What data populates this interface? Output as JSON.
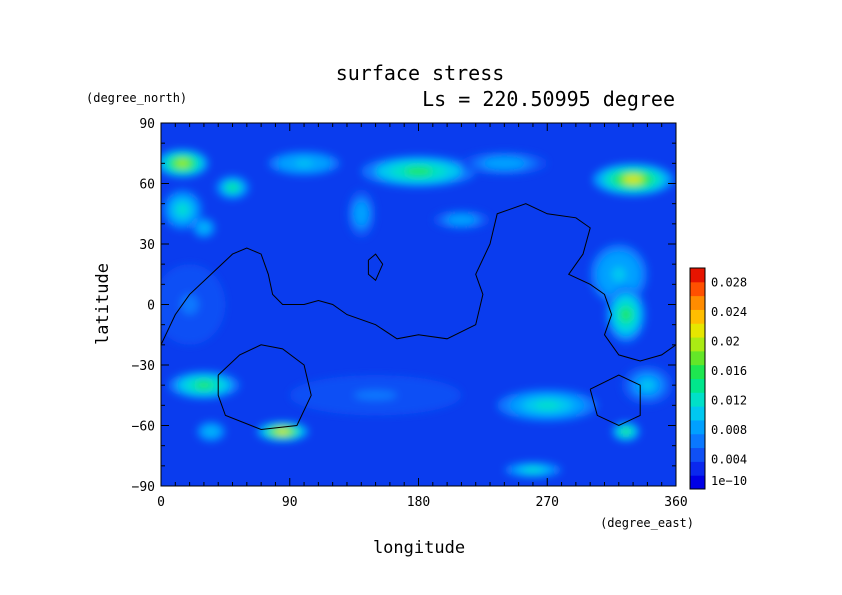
{
  "chart_data": {
    "type": "heatmap",
    "title": "surface stress",
    "subtitle": "Ls = 220.50995 degree",
    "xlabel": "longitude",
    "ylabel": "latitude",
    "x_units": "(degree_east)",
    "y_units": "(degree_north)",
    "xlim": [
      0,
      360
    ],
    "ylim": [
      -90,
      90
    ],
    "x_ticks": [
      "0",
      "90",
      "180",
      "270",
      "360"
    ],
    "y_ticks": [
      "90",
      "60",
      "30",
      "0",
      "−30",
      "−60",
      "−90"
    ],
    "x_tick_values": [
      0,
      90,
      180,
      270,
      360
    ],
    "y_tick_values": [
      90,
      60,
      30,
      0,
      -30,
      -60,
      -90
    ],
    "colorbar": {
      "min": 0,
      "max": 0.03,
      "ticks": [
        "1e−10",
        "0.004",
        "0.008",
        "0.012",
        "0.016",
        "0.02",
        "0.024",
        "0.028"
      ],
      "tick_values": [
        0,
        0.004,
        0.008,
        0.012,
        0.016,
        0.02,
        0.024,
        0.028
      ],
      "colors": [
        "#0000e6",
        "#0a28ee",
        "#0f50f5",
        "#0a78ff",
        "#00a0ff",
        "#00c8f0",
        "#00e0c8",
        "#00e68c",
        "#1ee650",
        "#64e628",
        "#aaeb14",
        "#e6e600",
        "#ffbe00",
        "#ff8c00",
        "#ff5000",
        "#e61400"
      ]
    },
    "hotspots": [
      {
        "lon": 15,
        "lat": 70,
        "rx": 18,
        "ry": 7,
        "value": 0.019
      },
      {
        "lon": 50,
        "lat": 58,
        "rx": 12,
        "ry": 6,
        "value": 0.014
      },
      {
        "lon": 15,
        "lat": 47,
        "rx": 14,
        "ry": 10,
        "value": 0.012
      },
      {
        "lon": 30,
        "lat": 38,
        "rx": 8,
        "ry": 5,
        "value": 0.011
      },
      {
        "lon": 100,
        "lat": 70,
        "rx": 25,
        "ry": 6,
        "value": 0.011
      },
      {
        "lon": 180,
        "lat": 66,
        "rx": 40,
        "ry": 8,
        "value": 0.015
      },
      {
        "lon": 240,
        "lat": 70,
        "rx": 30,
        "ry": 6,
        "value": 0.009
      },
      {
        "lon": 330,
        "lat": 62,
        "rx": 28,
        "ry": 8,
        "value": 0.021
      },
      {
        "lon": 320,
        "lat": 15,
        "rx": 20,
        "ry": 15,
        "value": 0.011
      },
      {
        "lon": 325,
        "lat": -5,
        "rx": 14,
        "ry": 14,
        "value": 0.015
      },
      {
        "lon": 30,
        "lat": -40,
        "rx": 25,
        "ry": 7,
        "value": 0.015
      },
      {
        "lon": 85,
        "lat": -63,
        "rx": 18,
        "ry": 5,
        "value": 0.022
      },
      {
        "lon": 35,
        "lat": -63,
        "rx": 10,
        "ry": 5,
        "value": 0.011
      },
      {
        "lon": 270,
        "lat": -50,
        "rx": 35,
        "ry": 8,
        "value": 0.012
      },
      {
        "lon": 325,
        "lat": -63,
        "rx": 10,
        "ry": 5,
        "value": 0.016
      },
      {
        "lon": 260,
        "lat": -82,
        "rx": 20,
        "ry": 4,
        "value": 0.012
      },
      {
        "lon": 140,
        "lat": 45,
        "rx": 10,
        "ry": 12,
        "value": 0.009
      },
      {
        "lon": 210,
        "lat": 42,
        "rx": 20,
        "ry": 5,
        "value": 0.009
      },
      {
        "lon": 340,
        "lat": -40,
        "rx": 18,
        "ry": 10,
        "value": 0.01
      },
      {
        "lon": 150,
        "lat": -45,
        "rx": 60,
        "ry": 10,
        "value": 0.006
      },
      {
        "lon": 20,
        "lat": 0,
        "rx": 25,
        "ry": 20,
        "value": 0.006
      }
    ],
    "contours": [
      {
        "name": "continent-outline",
        "points": [
          [
            0,
            -20
          ],
          [
            10,
            -5
          ],
          [
            20,
            5
          ],
          [
            35,
            15
          ],
          [
            50,
            25
          ],
          [
            60,
            28
          ],
          [
            70,
            25
          ],
          [
            75,
            15
          ],
          [
            78,
            5
          ],
          [
            85,
            0
          ],
          [
            100,
            0
          ],
          [
            110,
            2
          ],
          [
            120,
            0
          ],
          [
            130,
            -5
          ],
          [
            150,
            -10
          ],
          [
            165,
            -17
          ],
          [
            180,
            -15
          ],
          [
            200,
            -17
          ],
          [
            220,
            -10
          ],
          [
            225,
            5
          ],
          [
            220,
            15
          ],
          [
            230,
            30
          ],
          [
            235,
            45
          ],
          [
            255,
            50
          ],
          [
            270,
            45
          ],
          [
            290,
            43
          ],
          [
            300,
            38
          ],
          [
            295,
            25
          ],
          [
            285,
            15
          ],
          [
            300,
            10
          ],
          [
            310,
            5
          ],
          [
            315,
            -5
          ],
          [
            310,
            -15
          ],
          [
            320,
            -25
          ],
          [
            335,
            -28
          ],
          [
            350,
            -25
          ],
          [
            360,
            -20
          ]
        ]
      },
      {
        "name": "island-outline",
        "points": [
          [
            145,
            22
          ],
          [
            150,
            25
          ],
          [
            155,
            20
          ],
          [
            150,
            12
          ],
          [
            145,
            15
          ],
          [
            145,
            22
          ]
        ]
      },
      {
        "name": "southwest-basin-outline",
        "points": [
          [
            40,
            -35
          ],
          [
            55,
            -25
          ],
          [
            70,
            -20
          ],
          [
            85,
            -22
          ],
          [
            100,
            -30
          ],
          [
            105,
            -45
          ],
          [
            95,
            -60
          ],
          [
            70,
            -62
          ],
          [
            45,
            -55
          ],
          [
            40,
            -45
          ],
          [
            40,
            -35
          ]
        ]
      },
      {
        "name": "southeast-basin-outline",
        "points": [
          [
            300,
            -42
          ],
          [
            320,
            -35
          ],
          [
            335,
            -40
          ],
          [
            335,
            -55
          ],
          [
            320,
            -60
          ],
          [
            305,
            -55
          ],
          [
            300,
            -42
          ]
        ]
      }
    ]
  }
}
